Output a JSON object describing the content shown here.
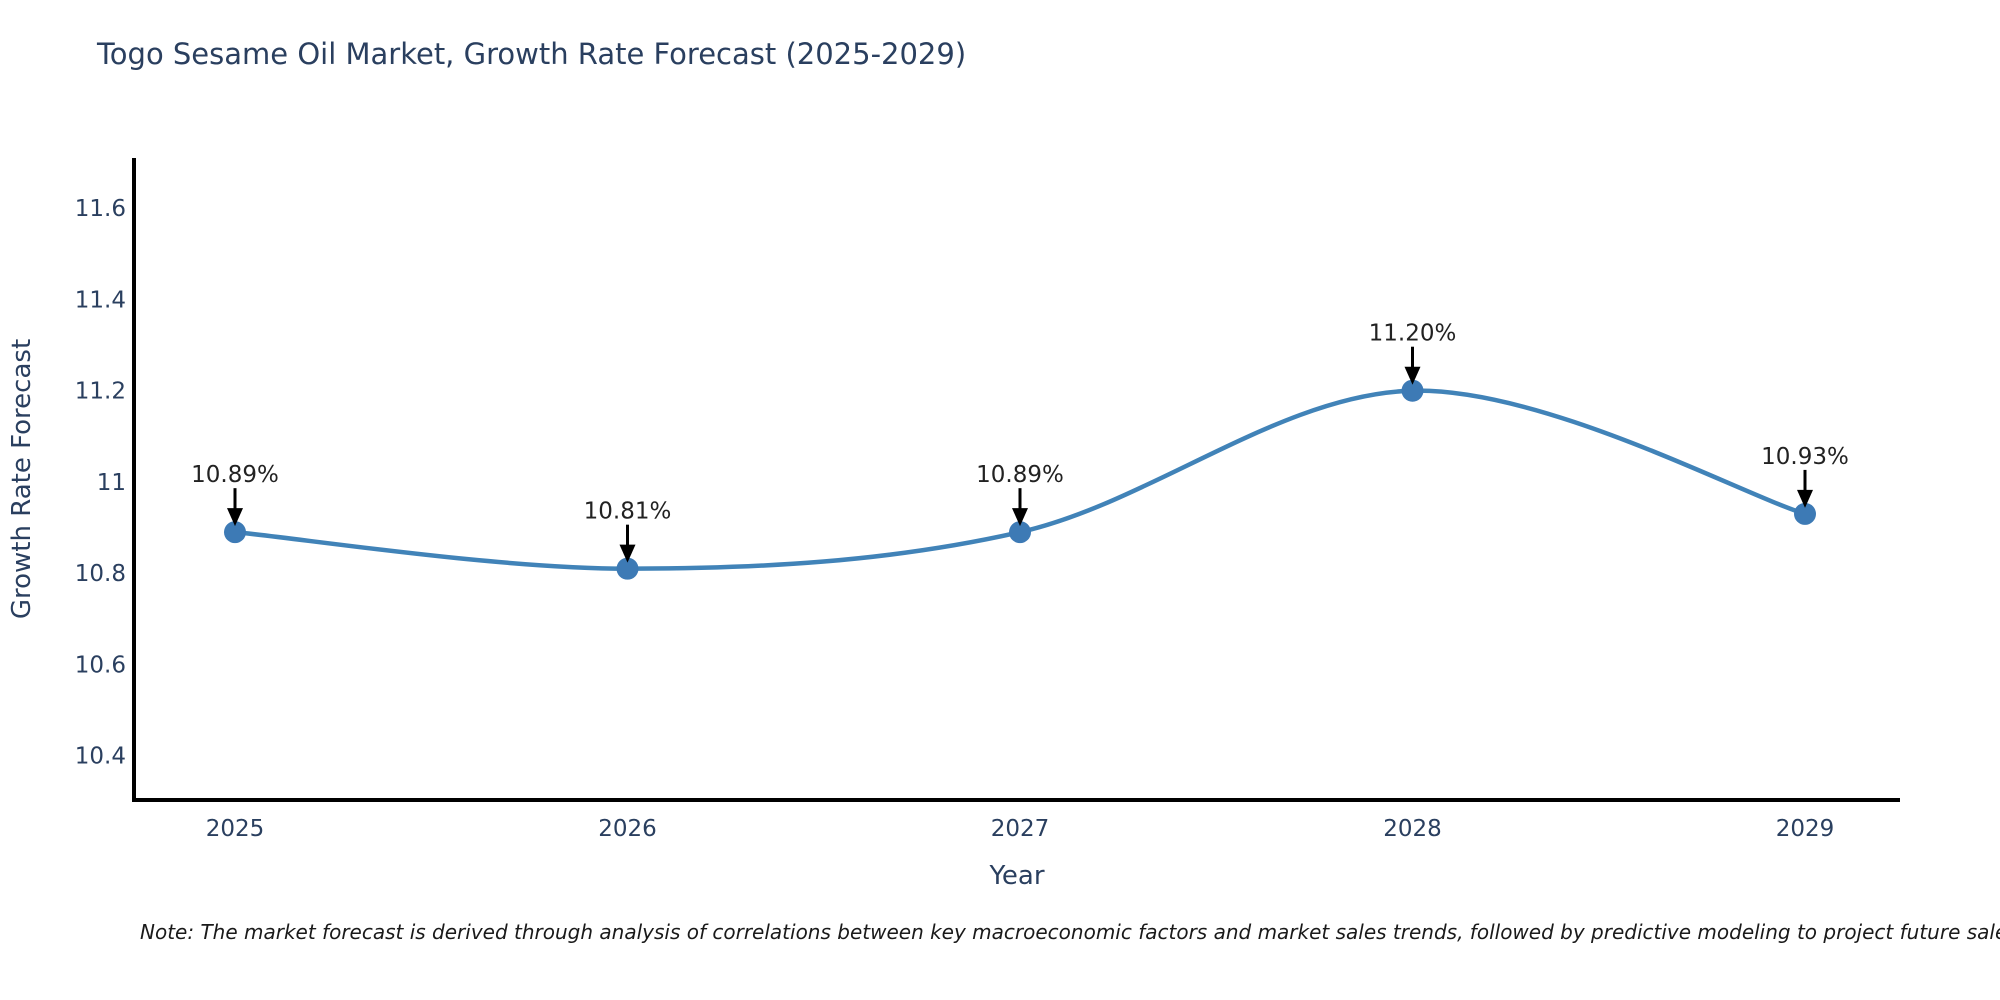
{
  "page": {
    "title": "Togo Sesame Oil Market, Growth Rate Forecast (2025-2029)",
    "note": "Note: The market forecast is derived through analysis of correlations between key macroeconomic factors and market sales trends, followed by predictive modeling to project future sales."
  },
  "chart_data": {
    "type": "line",
    "title": "Togo Sesame Oil Market, Growth Rate Forecast (2025-2029)",
    "xlabel": "Year",
    "ylabel": "Growth Rate Forecast",
    "line_shape": "spline",
    "grid": false,
    "legend": "none",
    "x": [
      2025,
      2026,
      2027,
      2028,
      2029
    ],
    "series": [
      {
        "name": "Growth Rate Forecast",
        "values": [
          10.89,
          10.81,
          10.89,
          11.2,
          10.93
        ]
      }
    ],
    "point_labels": [
      "10.89%",
      "10.81%",
      "10.89%",
      "11.20%",
      "10.93%"
    ],
    "ytick_labels": [
      "10.4",
      "10.6",
      "10.8",
      "11",
      "11.2",
      "11.4",
      "11.6"
    ],
    "yticks": [
      10.4,
      10.6,
      10.8,
      11.0,
      11.2,
      11.4,
      11.6
    ],
    "ylim": [
      10.303,
      11.71
    ],
    "colors": {
      "line": "#4183b8",
      "marker": "#3d7ab5",
      "axis": "#000000",
      "text": "#2a3f5f",
      "annotation": "#222222"
    }
  }
}
